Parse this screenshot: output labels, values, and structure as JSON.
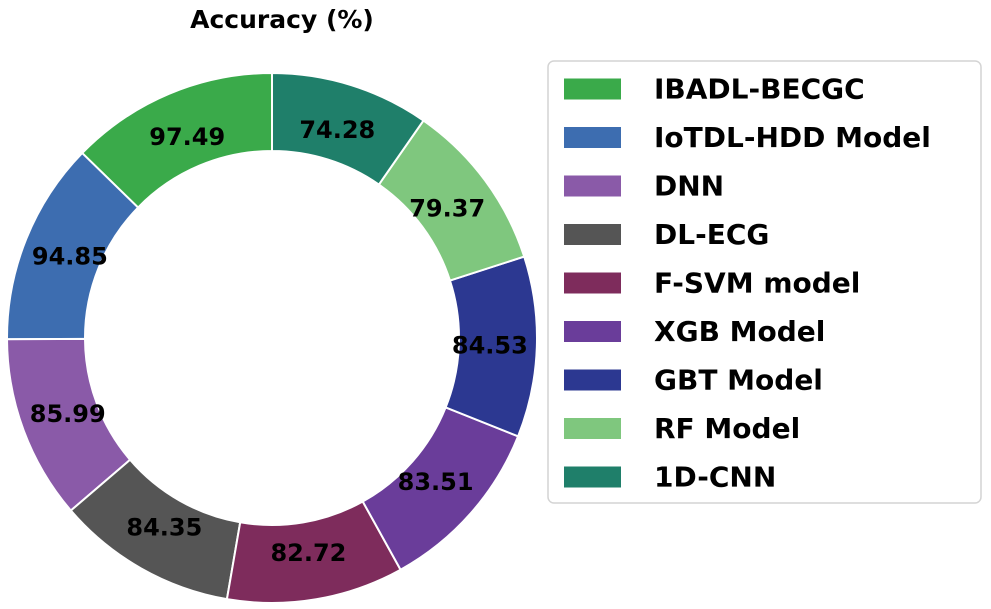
{
  "chart_data": {
    "type": "pie",
    "variant": "donut",
    "title": "Accuracy (%)",
    "start": "top",
    "direction": "counterclockwise",
    "slices": [
      {
        "label": "IBADL-BECGC",
        "value": 97.49,
        "color": "#3aaa4a"
      },
      {
        "label": "IoTDL-HDD Model",
        "value": 94.85,
        "color": "#3d6db0"
      },
      {
        "label": "DNN",
        "value": 85.99,
        "color": "#8a5aa8"
      },
      {
        "label": "DL-ECG",
        "value": 84.35,
        "color": "#555555"
      },
      {
        "label": "F-SVM model",
        "value": 82.72,
        "color": "#7e2c5c"
      },
      {
        "label": "XGB Model",
        "value": 83.51,
        "color": "#6a3d9a"
      },
      {
        "label": "GBT Model",
        "value": 84.53,
        "color": "#2c3891"
      },
      {
        "label": "RF Model",
        "value": 79.37,
        "color": "#7fc77e"
      },
      {
        "label": "1D-CNN",
        "value": 74.28,
        "color": "#1f7f6a"
      }
    ],
    "legend_position": "right"
  }
}
